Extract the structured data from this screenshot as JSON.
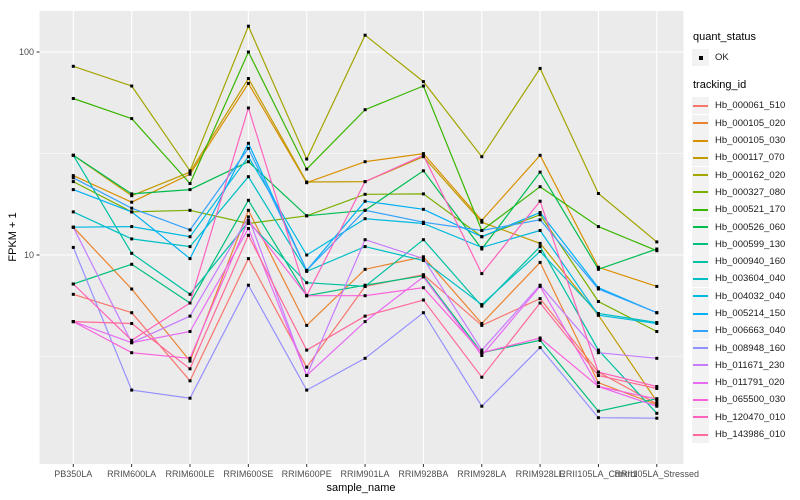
{
  "figure": {
    "background": "#FFFFFF",
    "panel_background": "#EBEBEB",
    "grid_color": "#FFFFFF",
    "tick_color": "#333333",
    "tick_label_color": "#4D4D4D",
    "axis_title_color": "#000000",
    "point_color": "#000000"
  },
  "chart_data": {
    "type": "line",
    "title": "",
    "xlabel": "sample_name",
    "ylabel": "FPKM + 1",
    "y_scale": "log10",
    "ylim": [
      0.95,
      160
    ],
    "y_ticks": [
      10,
      100
    ],
    "y_minor_ticks": [
      3.162,
      31.62
    ],
    "grid": "on",
    "legend_position": "right",
    "point_shape": "filled-square",
    "categories": [
      "PB350LA",
      "RRIM600LA",
      "RRIM600LE",
      "RRIM600SE",
      "RRIM600PE",
      "RRIM901LA",
      "RRIM928BA",
      "RRIM928LA",
      "RRIM928LE",
      "RRII105LA_Control",
      "RRII105LA_Stressed"
    ],
    "series": [
      {
        "name": "Hb_000061_510",
        "color": "#F8766D",
        "values": [
          6.4,
          5.2,
          2.4,
          9.6,
          2.8,
          7.0,
          8.0,
          4.5,
          6.1,
          2.65,
          1.85
        ]
      },
      {
        "name": "Hb_000105_020",
        "color": "#EA8331",
        "values": [
          13.7,
          6.8,
          3.0,
          16.6,
          4.5,
          8.5,
          9.8,
          4.6,
          9.2,
          2.35,
          1.83
        ]
      },
      {
        "name": "Hb_000105_030",
        "color": "#D89000",
        "values": [
          24.6,
          18.2,
          25.0,
          70,
          22.7,
          28.8,
          31.6,
          14.8,
          31,
          8.7,
          7.0
        ]
      },
      {
        "name": "Hb_000117_070",
        "color": "#C09B00",
        "values": [
          31,
          19.6,
          25.6,
          74,
          22.9,
          23.0,
          30.5,
          14.5,
          11.4,
          5.05,
          1.9
        ]
      },
      {
        "name": "Hb_000162_020",
        "color": "#A3A500",
        "values": [
          85,
          68,
          26,
          134,
          29.7,
          121,
          71.5,
          30.5,
          83,
          20.1,
          11.6
        ]
      },
      {
        "name": "Hb_000327_080",
        "color": "#7CAE00",
        "values": [
          23,
          16.3,
          16.6,
          14.3,
          15.6,
          19.9,
          20,
          12.3,
          15.8,
          5.9,
          4.2
        ]
      },
      {
        "name": "Hb_000521_170",
        "color": "#39B600",
        "values": [
          59,
          47,
          22.5,
          100,
          26.5,
          52,
          68,
          13.2,
          21.7,
          13.8,
          10.5
        ]
      },
      {
        "name": "Hb_000526_060",
        "color": "#00BB4E",
        "values": [
          31,
          20,
          21,
          28.8,
          15.6,
          16.6,
          26,
          10.7,
          25.6,
          8.5,
          10.7
        ]
      },
      {
        "name": "Hb_000599_130",
        "color": "#00BF7D",
        "values": [
          7.2,
          9.0,
          5.8,
          18.6,
          6.3,
          7.1,
          7.9,
          3.3,
          3.8,
          1.7,
          1.96
        ]
      },
      {
        "name": "Hb_000940_160",
        "color": "#00C1A3",
        "values": [
          31,
          10.2,
          6.4,
          14.5,
          7.3,
          7.0,
          11.9,
          5.6,
          11.0,
          3.4,
          1.66
        ]
      },
      {
        "name": "Hb_003604_040",
        "color": "#00BFC4",
        "values": [
          16.3,
          12.0,
          11.0,
          24.3,
          8.3,
          11.0,
          9.4,
          5.7,
          10.4,
          5.15,
          4.65
        ]
      },
      {
        "name": "Hb_004032_040",
        "color": "#00BAE0",
        "values": [
          13.7,
          13.8,
          12.3,
          30.5,
          10.0,
          15.1,
          14.3,
          10.9,
          13.2,
          5.05,
          4.6
        ]
      },
      {
        "name": "Hb_005214_150",
        "color": "#00B0F6",
        "values": [
          21,
          16.3,
          9.6,
          35.5,
          8.4,
          18.4,
          16.8,
          12.3,
          16.2,
          6.9,
          5.2
        ]
      },
      {
        "name": "Hb_006663_040",
        "color": "#35A2FF",
        "values": [
          24,
          17.0,
          13.3,
          33.5,
          8.4,
          16.6,
          14.5,
          13.2,
          14.9,
          6.8,
          5.2
        ]
      },
      {
        "name": "Hb_008948_160",
        "color": "#9590FF",
        "values": [
          10.9,
          2.16,
          1.97,
          7.1,
          2.16,
          3.1,
          5.2,
          1.8,
          3.5,
          1.58,
          1.57
        ]
      },
      {
        "name": "Hb_011671_230",
        "color": "#C77CFF",
        "values": [
          13.7,
          3.7,
          5.0,
          15.4,
          2.55,
          11.9,
          9.6,
          3.4,
          7.1,
          3.3,
          3.1
        ]
      },
      {
        "name": "Hb_011791_020",
        "color": "#E76BF3",
        "values": [
          4.7,
          3.7,
          4.2,
          13.5,
          2.55,
          4.7,
          7.8,
          3.2,
          7.0,
          2.25,
          1.8
        ]
      },
      {
        "name": "Hb_065500_030",
        "color": "#FA62DB",
        "values": [
          4.7,
          3.3,
          3.1,
          14.8,
          6.3,
          6.3,
          6.9,
          3.3,
          3.9,
          2.25,
          1.95
        ]
      },
      {
        "name": "Hb_120470_010",
        "color": "#FF62BC",
        "values": [
          7.2,
          3.8,
          5.8,
          53,
          6.3,
          23,
          31,
          8.1,
          18.4,
          2.65,
          2.25
        ]
      },
      {
        "name": "Hb_143986_010",
        "color": "#FF6A98",
        "values": [
          4.7,
          4.6,
          2.75,
          12.5,
          3.4,
          5.0,
          6.0,
          2.5,
          5.8,
          2.55,
          2.2
        ]
      }
    ],
    "legend": {
      "quant_status_title": "quant_status",
      "quant_status_items": [
        "OK"
      ],
      "tracking_title": "tracking_id"
    }
  }
}
